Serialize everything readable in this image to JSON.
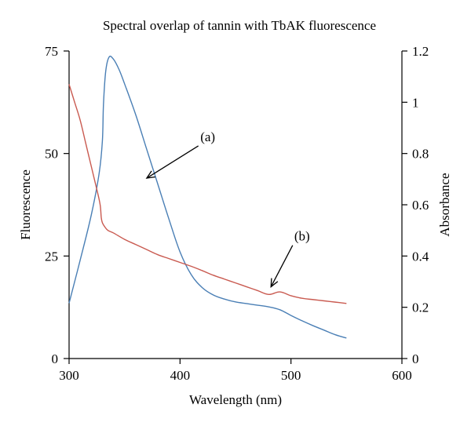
{
  "chart_data": {
    "type": "line",
    "title": "Spectral overlap of tannin with TbAK fluorescence",
    "xlabel": "Wavelength (nm)",
    "ylabel_left": "Fluorescence",
    "ylabel_right": "Absorbance",
    "xlim": [
      300,
      600
    ],
    "ylim_left": [
      0,
      75
    ],
    "ylim_right": [
      0,
      1.2
    ],
    "x_ticks": [
      "300",
      "400",
      "500",
      "600"
    ],
    "y_left_ticks": [
      "0",
      "25",
      "50",
      "75"
    ],
    "y_right_ticks": [
      "0",
      "0.2",
      "0.4",
      "0.6",
      "0.8",
      "1",
      "1.2"
    ],
    "grid": false,
    "series": [
      {
        "name": "(a)",
        "axis": "left",
        "color": "#4a7fb5",
        "x": [
          300,
          310,
          320,
          327,
          330,
          331,
          333,
          336,
          340,
          345,
          350,
          360,
          370,
          380,
          390,
          400,
          410,
          420,
          430,
          440,
          450,
          460,
          470,
          480,
          490,
          500,
          510,
          520,
          530,
          540,
          550
        ],
        "y": [
          13.5,
          24,
          35,
          45,
          53,
          62,
          70,
          73.5,
          73,
          70.5,
          67,
          59.5,
          51,
          42.5,
          34,
          26,
          20.5,
          17.3,
          15.5,
          14.5,
          13.8,
          13.4,
          13,
          12.6,
          11.9,
          10.5,
          9.2,
          8,
          6.9,
          5.8,
          5
        ]
      },
      {
        "name": "(b)",
        "axis": "right",
        "color": "#c95a50",
        "x": [
          300,
          305,
          310,
          315,
          320,
          325,
          328,
          329,
          330,
          332,
          335,
          340,
          350,
          360,
          370,
          380,
          390,
          400,
          410,
          420,
          430,
          440,
          450,
          460,
          470,
          480,
          490,
          500,
          510,
          520,
          530,
          540,
          550
        ],
        "y": [
          1.07,
          1.0,
          0.93,
          0.84,
          0.75,
          0.66,
          0.6,
          0.55,
          0.53,
          0.515,
          0.5,
          0.49,
          0.465,
          0.445,
          0.425,
          0.405,
          0.39,
          0.375,
          0.36,
          0.343,
          0.325,
          0.31,
          0.295,
          0.28,
          0.265,
          0.25,
          0.26,
          0.245,
          0.235,
          0.23,
          0.225,
          0.22,
          0.215
        ]
      }
    ],
    "annotations": [
      {
        "label": "(a)",
        "text_x": 425,
        "text_y": 53,
        "arrow_to_x": 370,
        "arrow_to_y": 44,
        "axis": "left"
      },
      {
        "label": "(b)",
        "text_x": 510,
        "text_y": 0.46,
        "arrow_to_x": 482,
        "arrow_to_y": 0.28,
        "axis": "right"
      }
    ]
  }
}
